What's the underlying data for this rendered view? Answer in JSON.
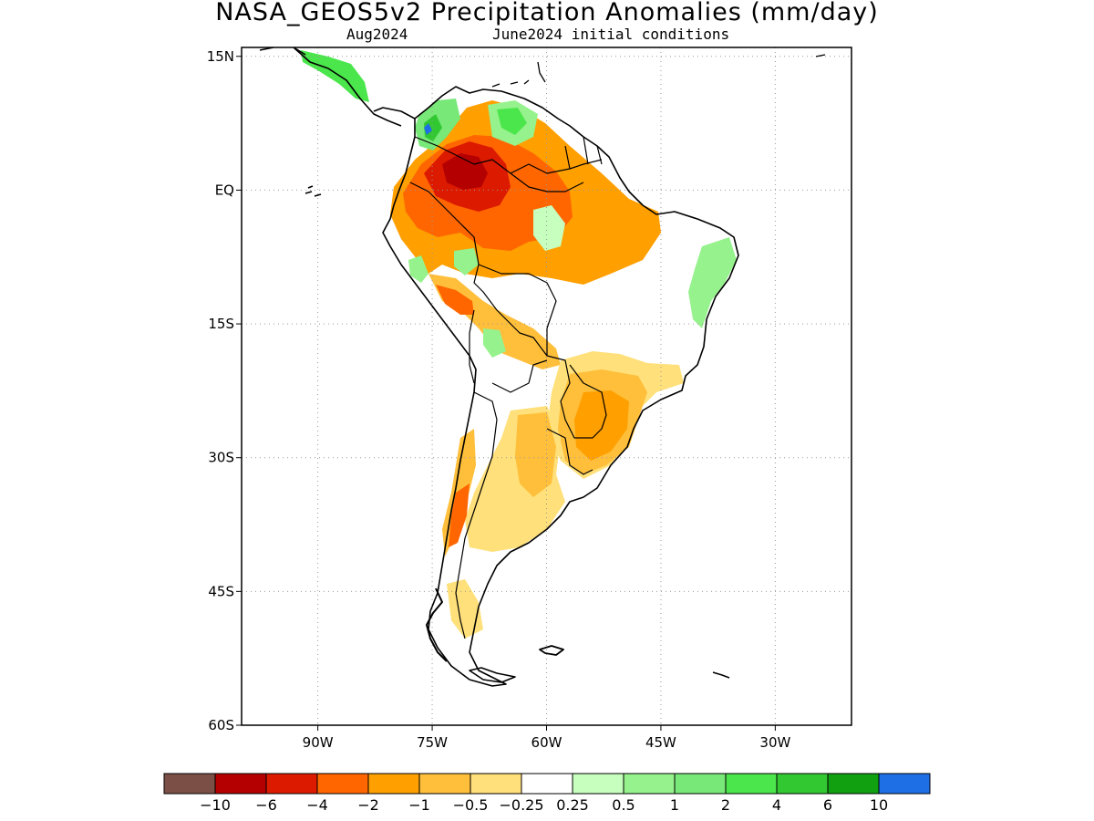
{
  "header": {
    "title": "NASA_GEOS5v2 Precipitation Anomalies (mm/day)",
    "subtitle_left": "Aug2024",
    "subtitle_right": "June2024 initial conditions"
  },
  "map": {
    "lat_labels": [
      "15N",
      "EQ",
      "15S",
      "30S",
      "45S",
      "60S"
    ],
    "lon_labels": [
      "90W",
      "75W",
      "60W",
      "45W",
      "30W"
    ],
    "lat_values": [
      15,
      0,
      -15,
      -30,
      -45,
      -60
    ],
    "lon_values": [
      -90,
      -75,
      -60,
      -45,
      -30
    ],
    "extent": {
      "lon_min": -100,
      "lon_max": -20,
      "lat_min": -60,
      "lat_max": 16
    }
  },
  "colorbar": {
    "colors": [
      "#7b4f45",
      "#b40000",
      "#dc1a00",
      "#ff6600",
      "#ff9f00",
      "#ffbf3a",
      "#ffe07a",
      "#ffffff",
      "#c6ffbe",
      "#96f28c",
      "#78e878",
      "#4be64b",
      "#32c832",
      "#10a010",
      "#1e6ee6"
    ],
    "labels": [
      "-10",
      "-6",
      "-4",
      "-2",
      "-1",
      "-0.5",
      "-0.25",
      "0.25",
      "0.5",
      "1",
      "2",
      "4",
      "6",
      "10"
    ]
  }
}
